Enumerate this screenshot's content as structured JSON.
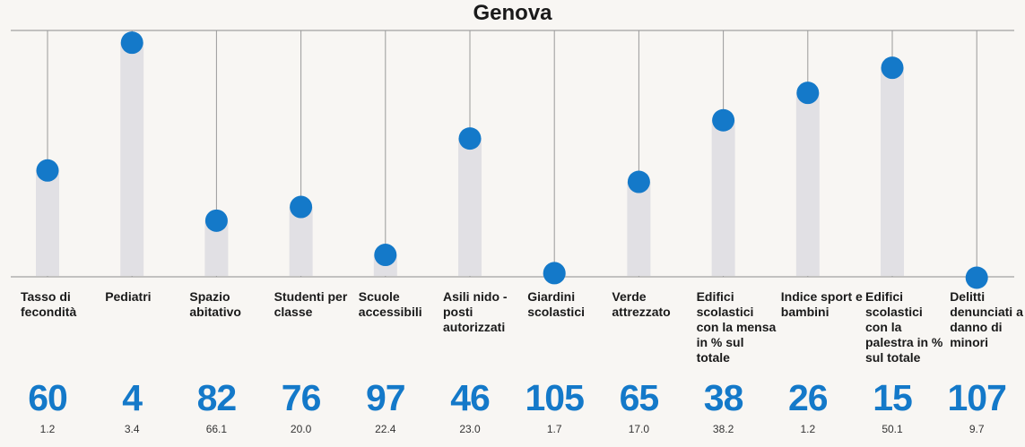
{
  "chart_data": {
    "type": "lollipop",
    "title": "Genova",
    "categories": [
      "Tasso di fecondità",
      "Pediatri",
      "Spazio abitativo",
      "Studenti per classe",
      "Scuole accessibili",
      "Asili nido - posti autorizzati",
      "Giardini scolastici",
      "Verde attrezzato",
      "Edifici scolastici con la mensa in % sul totale",
      "Indice sport e bambini",
      "Edifici scolastici con la palestra in % sul totale",
      "Delitti denunciati a danno di minori"
    ],
    "ranks": [
      "60",
      "4",
      "82",
      "76",
      "97",
      "46",
      "105",
      "65",
      "38",
      "26",
      "15",
      "107"
    ],
    "values": [
      "1.2",
      "3.4",
      "66.1",
      "20.0",
      "22.4",
      "23.0",
      "1.7",
      "17.0",
      "38.2",
      "1.2",
      "50.1",
      "9.7"
    ],
    "rank_scale": [
      1,
      107
    ],
    "dot_color": "#1479c9",
    "bar_color": "#e1e0e4",
    "grid": true
  }
}
